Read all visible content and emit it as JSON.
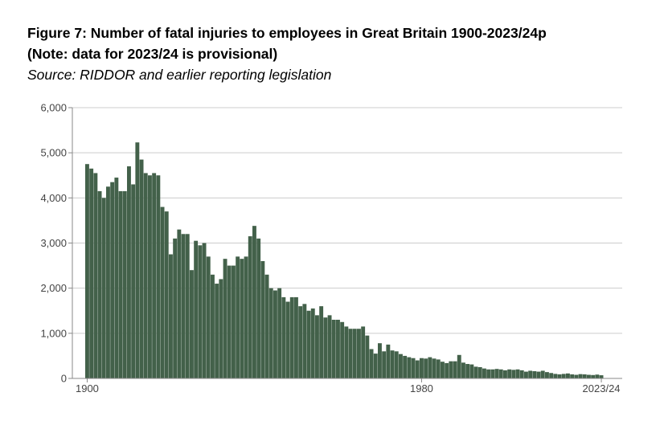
{
  "title_line1": "Figure 7: Number of fatal injuries to employees in Great Britain 1900-2023/24p",
  "title_line2": "(Note: data for 2023/24 is provisional)",
  "subtitle": "Source: RIDDOR and earlier reporting legislation",
  "colors": {
    "bar": "#43614a",
    "grid": "#cccccc",
    "axis": "#888888"
  },
  "chart_data": {
    "type": "bar",
    "title": "Figure 7: Number of fatal injuries to employees in Great Britain 1900-2023/24p",
    "ylim": [
      0,
      6000
    ],
    "y_ticks": [
      "0",
      "1,000",
      "2,000",
      "3,000",
      "4,000",
      "5,000",
      "6,000"
    ],
    "x_tick_labels": [
      {
        "label": "1900",
        "index": 0
      },
      {
        "label": "1980",
        "index": 80
      },
      {
        "label": "2023/24",
        "index": 123
      }
    ],
    "grid": true,
    "legend": "none",
    "values": [
      4750,
      4650,
      4550,
      4150,
      4000,
      4250,
      4350,
      4450,
      4150,
      4150,
      4700,
      4300,
      5230,
      4850,
      4550,
      4500,
      4550,
      4500,
      3800,
      3700,
      2750,
      3100,
      3300,
      3200,
      3200,
      2400,
      3050,
      2950,
      3000,
      2700,
      2300,
      2100,
      2200,
      2650,
      2500,
      2500,
      2700,
      2650,
      2700,
      3150,
      3380,
      3100,
      2600,
      2300,
      2000,
      1950,
      2000,
      1800,
      1700,
      1800,
      1800,
      1600,
      1650,
      1500,
      1550,
      1400,
      1600,
      1350,
      1400,
      1300,
      1300,
      1250,
      1150,
      1100,
      1100,
      1100,
      1150,
      950,
      650,
      550,
      780,
      600,
      750,
      620,
      600,
      540,
      500,
      470,
      450,
      400,
      450,
      440,
      470,
      440,
      420,
      370,
      340,
      380,
      380,
      520,
      350,
      320,
      310,
      260,
      250,
      220,
      200,
      200,
      210,
      200,
      180,
      200,
      190,
      200,
      180,
      150,
      170,
      160,
      150,
      170,
      140,
      120,
      100,
      90,
      100,
      110,
      90,
      80,
      95,
      90,
      80,
      75,
      85,
      70
    ]
  }
}
